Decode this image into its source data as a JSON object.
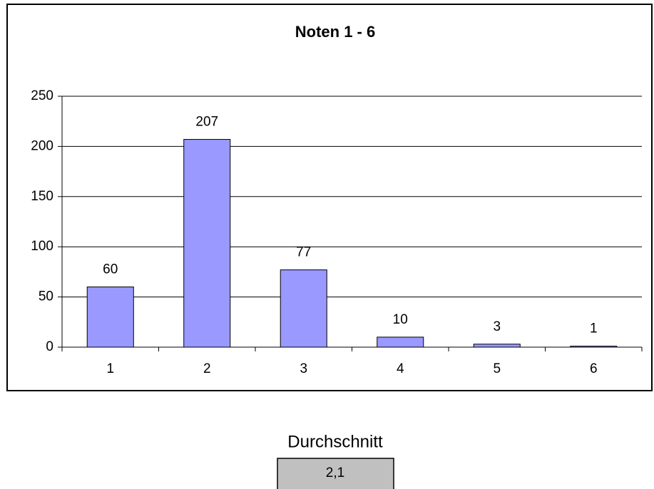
{
  "chart_data": {
    "type": "bar",
    "title": "Noten 1 - 6",
    "categories": [
      "1",
      "2",
      "3",
      "4",
      "5",
      "6"
    ],
    "values": [
      60,
      207,
      77,
      10,
      3,
      1
    ],
    "color": "#9999ff",
    "ylim": [
      0,
      250
    ],
    "yticks": [
      0,
      50,
      100,
      150,
      200,
      250
    ],
    "grid": true
  },
  "average": {
    "label": "Durchschnitt",
    "value": "2,1"
  }
}
